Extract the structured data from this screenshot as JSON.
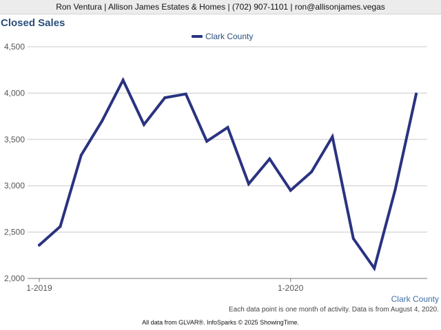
{
  "header": {
    "contact": "Ron Ventura | Allison James Estates & Homes | (702) 907-1101 | ron@allisonjames.vegas"
  },
  "chart_data": {
    "type": "line",
    "title": "Closed Sales",
    "x": [
      "1-2019",
      "2-2019",
      "3-2019",
      "4-2019",
      "5-2019",
      "6-2019",
      "7-2019",
      "8-2019",
      "9-2019",
      "10-2019",
      "11-2019",
      "12-2019",
      "1-2020",
      "2-2020",
      "3-2020",
      "4-2020",
      "5-2020",
      "6-2020",
      "7-2020"
    ],
    "x_tick_labels": [
      "1-2019",
      "1-2020"
    ],
    "series": [
      {
        "name": "Clark County",
        "color": "#2a3380",
        "values": [
          2360,
          2560,
          3330,
          3700,
          4140,
          3660,
          3950,
          3990,
          3480,
          3630,
          3020,
          3290,
          2950,
          3150,
          3530,
          2430,
          2110,
          2960,
          3990
        ]
      }
    ],
    "ylim": [
      2000,
      4500
    ],
    "yticks": [
      "2,000",
      "2,500",
      "3,000",
      "3,500",
      "4,000",
      "4,500"
    ],
    "ytick_values": [
      2000,
      2500,
      3000,
      3500,
      4000,
      4500
    ],
    "grid": true,
    "legend": "top-center"
  },
  "labels": {
    "region": "Clark County",
    "note": "Each data point is one month of activity. Data is from August 4, 2020.",
    "footer": "All data from GLVAR®. InfoSparks © 2025 ShowingTime."
  }
}
